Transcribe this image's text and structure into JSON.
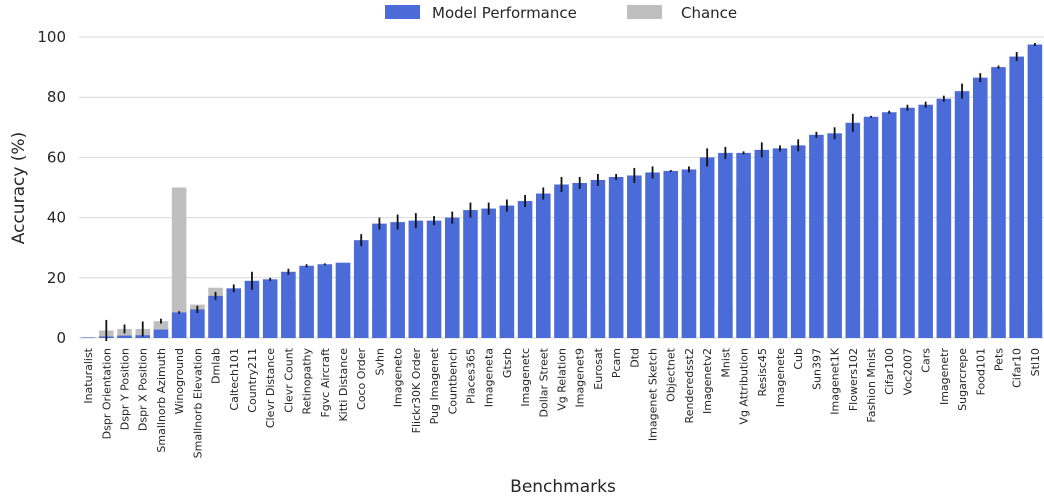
{
  "chart_data": {
    "type": "bar",
    "title": "",
    "xlabel": "Benchmarks",
    "ylabel": "Accuracy (%)",
    "ylim": [
      0,
      100
    ],
    "yticks": [
      0,
      20,
      40,
      60,
      80,
      100
    ],
    "grid": true,
    "legend_placement": "top-center",
    "colors": {
      "model": "#4a6bd8",
      "chance": "#bfbfbf",
      "error": "#111111",
      "grid": "#d9d9d9"
    },
    "categories": [
      "Inaturalist",
      "Dspr Orientation",
      "Dspr Y Position",
      "Dspr X Position",
      "Smallnorb Azimuth",
      "Winoground",
      "Smallnorb Elevation",
      "Dmlab",
      "Caltech101",
      "Country211",
      "Clevr Distance",
      "Clevr Count",
      "Retinopathy",
      "Fgvc Aircraft",
      "Kitti Distance",
      "Coco Order",
      "Svhn",
      "Imageneto",
      "Flickr30K Order",
      "Pug Imagenet",
      "Countbench",
      "Places365",
      "Imageneta",
      "Gtsrb",
      "Imagenetc",
      "Dollar Street",
      "Vg Relation",
      "Imagenet9",
      "Eurosat",
      "Pcam",
      "Dtd",
      "Imagenet Sketch",
      "Objectnet",
      "Renderedsst2",
      "Imagenetv2",
      "Mnist",
      "Vg Attribution",
      "Resisc45",
      "Imagenete",
      "Cub",
      "Sun397",
      "Imagenet1K",
      "Flowers102",
      "Fashion Mnist",
      "Cifar100",
      "Voc2007",
      "Cars",
      "Imagenetr",
      "Sugarcrepe",
      "Food101",
      "Pets",
      "Cifar10",
      "Stl10"
    ],
    "series": [
      {
        "name": "Model Performance",
        "values": [
          0.2,
          0.5,
          0.8,
          0.9,
          2.8,
          8.5,
          9.5,
          14.0,
          16.5,
          19.0,
          19.5,
          22.0,
          24.0,
          24.5,
          25.0,
          32.5,
          38.0,
          38.5,
          39.0,
          39.0,
          40.0,
          42.5,
          43.0,
          44.0,
          45.5,
          48.0,
          51.0,
          51.5,
          52.5,
          53.5,
          54.0,
          55.0,
          55.5,
          56.0,
          60.0,
          61.5,
          61.5,
          62.5,
          63.0,
          64.0,
          67.5,
          68.0,
          71.5,
          73.5,
          75.0,
          76.5,
          77.5,
          79.5,
          82.0,
          86.5,
          90.0,
          93.5,
          97.5
        ],
        "errors": [
          0,
          0,
          0,
          0,
          0,
          0.4,
          1.2,
          1.3,
          1.3,
          3.0,
          0.5,
          1.0,
          0.5,
          0.3,
          0,
          2.0,
          2.0,
          2.5,
          2.5,
          1.5,
          2.0,
          2.5,
          2.0,
          2.0,
          2.0,
          2.0,
          2.5,
          2.0,
          2.0,
          1.0,
          2.5,
          2.0,
          0.3,
          1.0,
          3.0,
          2.0,
          0.5,
          2.5,
          1.0,
          2.0,
          1.0,
          2.0,
          3.0,
          0.3,
          0.5,
          1.0,
          1.0,
          1.0,
          2.5,
          1.5,
          0.5,
          1.5,
          0.5
        ]
      },
      {
        "name": "Chance",
        "values": [
          0.1,
          2.5,
          3.0,
          3.0,
          5.6,
          50,
          11.1,
          16.7,
          1.0,
          0.5,
          16.7,
          12.5,
          20,
          1.0,
          25,
          20,
          10,
          0.5,
          20,
          0.7,
          10,
          0.3,
          0.5,
          2.3,
          0.1,
          1.7,
          50,
          0.1,
          10,
          50,
          2.1,
          0.1,
          0.8,
          50,
          0.1,
          10,
          50,
          2.2,
          0.5,
          0.5,
          0.3,
          0.1,
          1.0,
          10,
          1.0,
          5,
          0.5,
          0.5,
          50,
          1.0,
          2.7,
          10,
          10
        ],
        "errors": [
          0,
          3.5,
          1.5,
          2.5,
          0.8,
          0,
          0,
          0,
          0,
          0,
          0,
          0,
          0,
          0,
          0,
          0,
          0,
          0,
          0,
          0,
          0,
          0,
          0,
          0,
          0,
          0,
          0,
          0,
          0,
          0,
          0,
          0,
          0,
          0,
          0,
          0,
          0,
          0,
          0,
          0,
          0,
          0,
          0,
          0,
          0,
          0,
          0,
          0,
          0,
          0,
          0,
          0,
          0
        ]
      }
    ]
  }
}
